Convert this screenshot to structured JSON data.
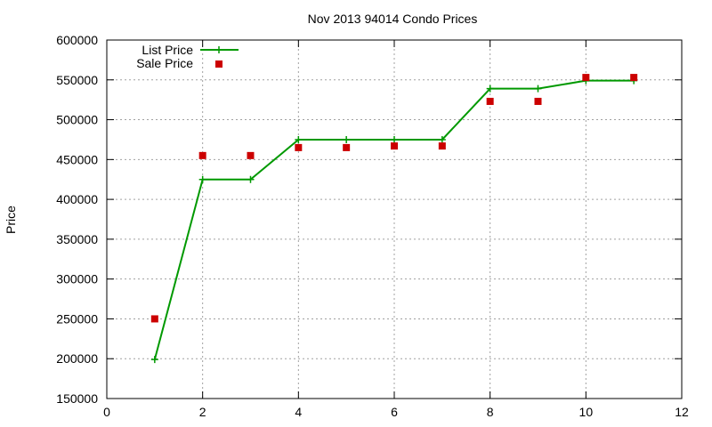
{
  "chart_data": {
    "type": "line",
    "title": "Nov 2013 94014 Condo Prices",
    "xlabel": "",
    "ylabel": "Price",
    "xlim": [
      0,
      12
    ],
    "ylim": [
      150000,
      600000
    ],
    "xticks": [
      0,
      2,
      4,
      6,
      8,
      10,
      12
    ],
    "yticks": [
      150000,
      200000,
      250000,
      300000,
      350000,
      400000,
      450000,
      500000,
      550000,
      600000
    ],
    "grid": true,
    "legend_position": "top-left",
    "series": [
      {
        "name": "List Price",
        "style": "line-with-plus-markers",
        "color": "#009900",
        "x": [
          1,
          2,
          3,
          4,
          5,
          6,
          7,
          8,
          9,
          10,
          11
        ],
        "y": [
          199000,
          425000,
          425000,
          475000,
          475000,
          475000,
          475000,
          539000,
          539000,
          549000,
          549000
        ]
      },
      {
        "name": "Sale Price",
        "style": "square-markers",
        "color": "#cc0000",
        "x": [
          1,
          2,
          3,
          4,
          5,
          6,
          7,
          8,
          9,
          10,
          11
        ],
        "y": [
          250000,
          455000,
          455000,
          465000,
          465000,
          467000,
          467000,
          523000,
          523000,
          553000,
          553000
        ]
      }
    ]
  }
}
